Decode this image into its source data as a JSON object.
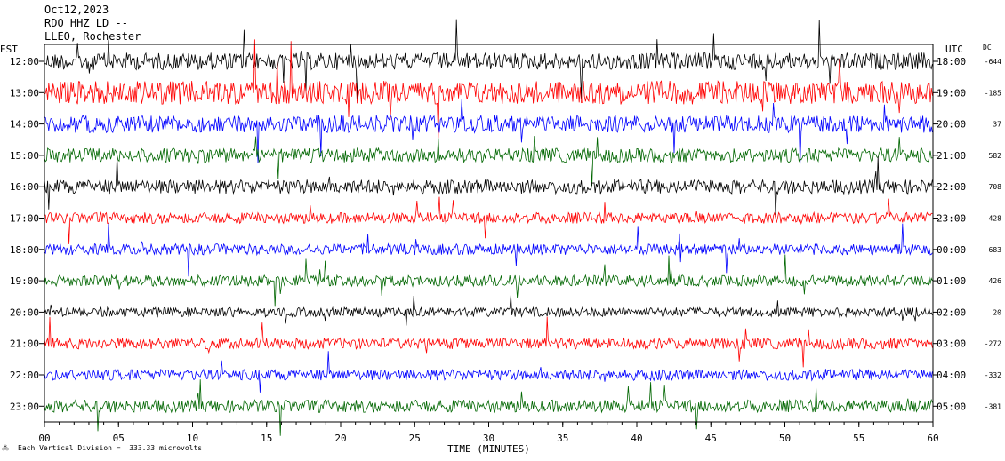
{
  "header": {
    "date": "Oct12,2023",
    "station": "RDO HHZ LD --",
    "location": "LLEO, Rochester"
  },
  "footer": {
    "scale_note": "Each Vertical Division =  333.33 microvolts"
  },
  "chart_data": {
    "type": "line",
    "title": "Oct12,2023",
    "xlabel": "TIME (MINUTES)",
    "left_axis_label": "EST",
    "right_axis_label": "UTC",
    "dc_label": "DC",
    "x_ticks": [
      "00",
      "05",
      "10",
      "15",
      "20",
      "25",
      "30",
      "35",
      "40",
      "45",
      "50",
      "55",
      "60"
    ],
    "xlim": [
      0,
      60
    ],
    "trace_colors": [
      "#000000",
      "#ff0000",
      "#0000ff",
      "#006600"
    ],
    "series": [
      {
        "est": "12:00",
        "utc": "18:00",
        "dc": "-644",
        "amplitude": 0.55
      },
      {
        "est": "13:00",
        "utc": "19:00",
        "dc": "-185",
        "amplitude": 0.75
      },
      {
        "est": "14:00",
        "utc": "20:00",
        "dc": "37",
        "amplitude": 0.55
      },
      {
        "est": "15:00",
        "utc": "21:00",
        "dc": "582",
        "amplitude": 0.45
      },
      {
        "est": "16:00",
        "utc": "22:00",
        "dc": "708",
        "amplitude": 0.45
      },
      {
        "est": "17:00",
        "utc": "23:00",
        "dc": "428",
        "amplitude": 0.35
      },
      {
        "est": "18:00",
        "utc": "00:00",
        "dc": "683",
        "amplitude": 0.35
      },
      {
        "est": "19:00",
        "utc": "01:00",
        "dc": "426",
        "amplitude": 0.35
      },
      {
        "est": "20:00",
        "utc": "02:00",
        "dc": "20",
        "amplitude": 0.3
      },
      {
        "est": "21:00",
        "utc": "03:00",
        "dc": "-272",
        "amplitude": 0.35
      },
      {
        "est": "22:00",
        "utc": "04:00",
        "dc": "-332",
        "amplitude": 0.35
      },
      {
        "est": "23:00",
        "utc": "05:00",
        "dc": "-381",
        "amplitude": 0.4
      }
    ]
  }
}
